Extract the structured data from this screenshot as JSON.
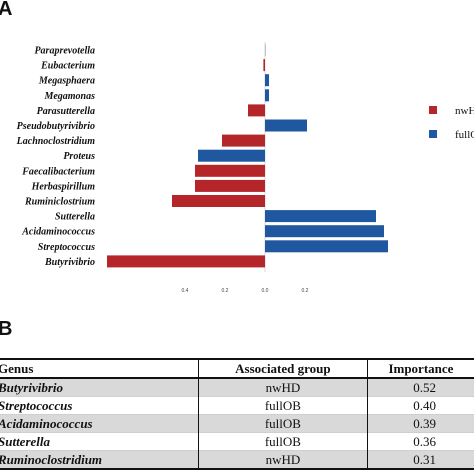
{
  "panel_a_label": "A",
  "panel_b_label": "B",
  "chart_data": {
    "type": "bar",
    "orientation": "horizontal",
    "title": "",
    "xlabel": "",
    "ylabel": "",
    "categories": [
      "Paraprevotella",
      "Eubacterium",
      "Megasphaera",
      "Megamonas",
      "Parasutterella",
      "Pseudobutyrivibrio",
      "Lachnoclostridium",
      "Proteus",
      "Faecalibacterium",
      "Herbaspirillum",
      "Ruminiclostrium",
      "Sutterella",
      "Acidaminococcus",
      "Streptococcus",
      "Butyrivibrio"
    ],
    "values": [
      0.003,
      -0.008,
      0.02,
      0.02,
      -0.085,
      0.21,
      -0.215,
      -0.335,
      -0.35,
      -0.35,
      -0.465,
      0.555,
      0.595,
      0.615,
      -0.79
    ],
    "colors": [
      "#c0c0c0",
      "#b5262b",
      "#1f57a0",
      "#1f57a0",
      "#b5262b",
      "#1f57a0",
      "#b5262b",
      "#1f57a0",
      "#b5262b",
      "#b5262b",
      "#b5262b",
      "#1f57a0",
      "#1f57a0",
      "#1f57a0",
      "#b5262b"
    ],
    "xlim": [
      -0.8,
      0.6
    ],
    "ticks": [
      -0.4,
      -0.2,
      0.0,
      0.2
    ],
    "tick_labels": [
      "0.4",
      "0.2",
      "0.0",
      "0.2"
    ],
    "legend": [
      {
        "name": "nwHD",
        "color": "#b5262b"
      },
      {
        "name": "fullOB",
        "color": "#1f57a0"
      }
    ],
    "legend_position": "right"
  },
  "table": {
    "headers": [
      "Genus",
      "Associated group",
      "Importance"
    ],
    "rows": [
      [
        "Butyrivibrio",
        "nwHD",
        "0.52"
      ],
      [
        "Streptococcus",
        "fullOB",
        "0.40"
      ],
      [
        "Acidaminococcus",
        "fullOB",
        "0.39"
      ],
      [
        "Sutterella",
        "fullOB",
        "0.36"
      ],
      [
        "Ruminoclostridium",
        "nwHD",
        "0.31"
      ]
    ]
  }
}
